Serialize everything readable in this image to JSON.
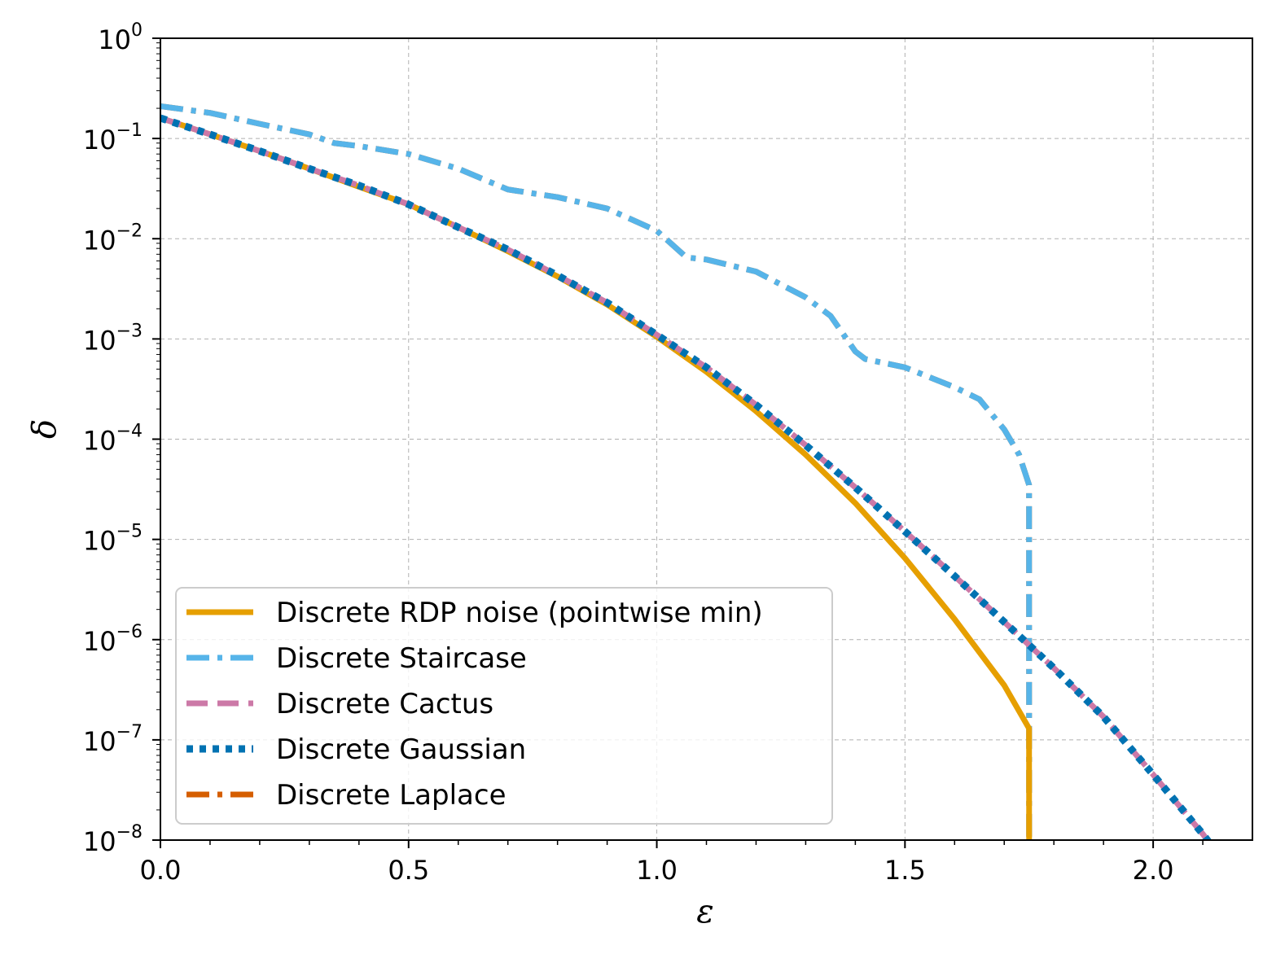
{
  "chart_data": {
    "type": "line",
    "xlabel": "ε",
    "ylabel": "δ",
    "xlim": [
      0.0,
      2.2
    ],
    "ylim": [
      1e-08,
      1
    ],
    "yscale": "log",
    "grid": true,
    "legend_position": "lower-left",
    "x_ticks": [
      {
        "value": 0.0,
        "label": "0.0"
      },
      {
        "value": 0.5,
        "label": "0.5"
      },
      {
        "value": 1.0,
        "label": "1.0"
      },
      {
        "value": 1.5,
        "label": "1.5"
      },
      {
        "value": 2.0,
        "label": "2.0"
      }
    ],
    "y_ticks": [
      {
        "value": 1,
        "base": "10",
        "exp": "0"
      },
      {
        "value": 0.1,
        "base": "10",
        "exp": "−1"
      },
      {
        "value": 0.01,
        "base": "10",
        "exp": "−2"
      },
      {
        "value": 0.001,
        "base": "10",
        "exp": "−3"
      },
      {
        "value": 0.0001,
        "base": "10",
        "exp": "−4"
      },
      {
        "value": 1e-05,
        "base": "10",
        "exp": "−5"
      },
      {
        "value": 1e-06,
        "base": "10",
        "exp": "−6"
      },
      {
        "value": 1e-07,
        "base": "10",
        "exp": "−7"
      },
      {
        "value": 1e-08,
        "base": "10",
        "exp": "−8"
      }
    ],
    "series": [
      {
        "name": "Discrete RDP noise (pointwise min)",
        "color": "#E69F00",
        "style": "solid",
        "points": [
          [
            0.0,
            0.16
          ],
          [
            0.1,
            0.11
          ],
          [
            0.2,
            0.075
          ],
          [
            0.3,
            0.05
          ],
          [
            0.4,
            0.033
          ],
          [
            0.5,
            0.022
          ],
          [
            0.6,
            0.013
          ],
          [
            0.7,
            0.0075
          ],
          [
            0.8,
            0.0042
          ],
          [
            0.9,
            0.0022
          ],
          [
            1.0,
            0.00105
          ],
          [
            1.1,
            0.00047
          ],
          [
            1.2,
            0.00019
          ],
          [
            1.3,
            7e-05
          ],
          [
            1.4,
            2.3e-05
          ],
          [
            1.5,
            6.5e-06
          ],
          [
            1.6,
            1.6e-06
          ],
          [
            1.7,
            3.5e-07
          ],
          [
            1.75,
            1.3e-07
          ],
          [
            1.7501,
            1e-08
          ]
        ]
      },
      {
        "name": "Discrete Staircase",
        "color": "#56B4E9",
        "style": "dashdot",
        "points": [
          [
            0.0,
            0.21
          ],
          [
            0.1,
            0.18
          ],
          [
            0.2,
            0.14
          ],
          [
            0.3,
            0.11
          ],
          [
            0.35,
            0.09
          ],
          [
            0.4,
            0.084
          ],
          [
            0.5,
            0.07
          ],
          [
            0.6,
            0.05
          ],
          [
            0.7,
            0.031
          ],
          [
            0.8,
            0.026
          ],
          [
            0.9,
            0.02
          ],
          [
            1.0,
            0.012
          ],
          [
            1.06,
            0.0065
          ],
          [
            1.1,
            0.0062
          ],
          [
            1.2,
            0.0047
          ],
          [
            1.3,
            0.0026
          ],
          [
            1.35,
            0.0017
          ],
          [
            1.4,
            0.00075
          ],
          [
            1.42,
            0.00063
          ],
          [
            1.5,
            0.00052
          ],
          [
            1.6,
            0.00033
          ],
          [
            1.65,
            0.00025
          ],
          [
            1.7,
            0.000125
          ],
          [
            1.73,
            7e-05
          ],
          [
            1.75,
            3.5e-05
          ],
          [
            1.7501,
            1e-08
          ]
        ]
      },
      {
        "name": "Discrete Cactus",
        "color": "#CC79A7",
        "style": "dashed",
        "points": [
          [
            0.0,
            0.16
          ],
          [
            0.1,
            0.11
          ],
          [
            0.2,
            0.075
          ],
          [
            0.3,
            0.05
          ],
          [
            0.4,
            0.034
          ],
          [
            0.5,
            0.022
          ],
          [
            0.6,
            0.013
          ],
          [
            0.7,
            0.0078
          ],
          [
            0.8,
            0.0043
          ],
          [
            0.9,
            0.0023
          ],
          [
            1.0,
            0.0011
          ],
          [
            1.1,
            0.00052
          ],
          [
            1.2,
            0.00022
          ],
          [
            1.3,
            8.7e-05
          ],
          [
            1.4,
            3.3e-05
          ],
          [
            1.5,
            1.2e-05
          ],
          [
            1.6,
            4.3e-06
          ],
          [
            1.7,
            1.5e-06
          ],
          [
            1.8,
            5.2e-07
          ],
          [
            1.9,
            1.7e-07
          ],
          [
            2.0,
            4.5e-08
          ],
          [
            2.1,
            1.15e-08
          ],
          [
            2.12,
            8.5e-09
          ]
        ]
      },
      {
        "name": "Discrete Gaussian",
        "color": "#0072B2",
        "style": "dotted",
        "points": [
          [
            0.0,
            0.16
          ],
          [
            0.1,
            0.11
          ],
          [
            0.2,
            0.075
          ],
          [
            0.3,
            0.05
          ],
          [
            0.4,
            0.034
          ],
          [
            0.5,
            0.022
          ],
          [
            0.6,
            0.013
          ],
          [
            0.7,
            0.0078
          ],
          [
            0.8,
            0.0043
          ],
          [
            0.9,
            0.0023
          ],
          [
            1.0,
            0.0011
          ],
          [
            1.1,
            0.00052
          ],
          [
            1.2,
            0.00022
          ],
          [
            1.3,
            8.7e-05
          ],
          [
            1.4,
            3.3e-05
          ],
          [
            1.5,
            1.2e-05
          ],
          [
            1.6,
            4.3e-06
          ],
          [
            1.7,
            1.5e-06
          ],
          [
            1.8,
            5.2e-07
          ],
          [
            1.9,
            1.7e-07
          ],
          [
            2.0,
            4.5e-08
          ],
          [
            2.1,
            1.15e-08
          ],
          [
            2.12,
            8.5e-09
          ]
        ]
      },
      {
        "name": "Discrete Laplace",
        "color": "#D55E00",
        "style": "dashdot",
        "points": [
          [
            0.0,
            0.21
          ],
          [
            0.1,
            0.18
          ],
          [
            0.2,
            0.14
          ],
          [
            0.3,
            0.11
          ],
          [
            0.35,
            0.09
          ],
          [
            0.4,
            0.084
          ],
          [
            0.5,
            0.07
          ],
          [
            0.6,
            0.05
          ],
          [
            0.7,
            0.031
          ],
          [
            0.8,
            0.026
          ],
          [
            0.9,
            0.02
          ],
          [
            1.0,
            0.012
          ],
          [
            1.06,
            0.0065
          ],
          [
            1.1,
            0.0062
          ],
          [
            1.2,
            0.0047
          ],
          [
            1.3,
            0.0026
          ],
          [
            1.35,
            0.0017
          ],
          [
            1.4,
            0.00075
          ],
          [
            1.42,
            0.00063
          ],
          [
            1.5,
            0.00052
          ],
          [
            1.6,
            0.00033
          ],
          [
            1.65,
            0.00025
          ],
          [
            1.7,
            0.000125
          ],
          [
            1.73,
            7e-05
          ],
          [
            1.75,
            3.5e-05
          ],
          [
            1.7501,
            1e-08
          ]
        ]
      }
    ]
  }
}
